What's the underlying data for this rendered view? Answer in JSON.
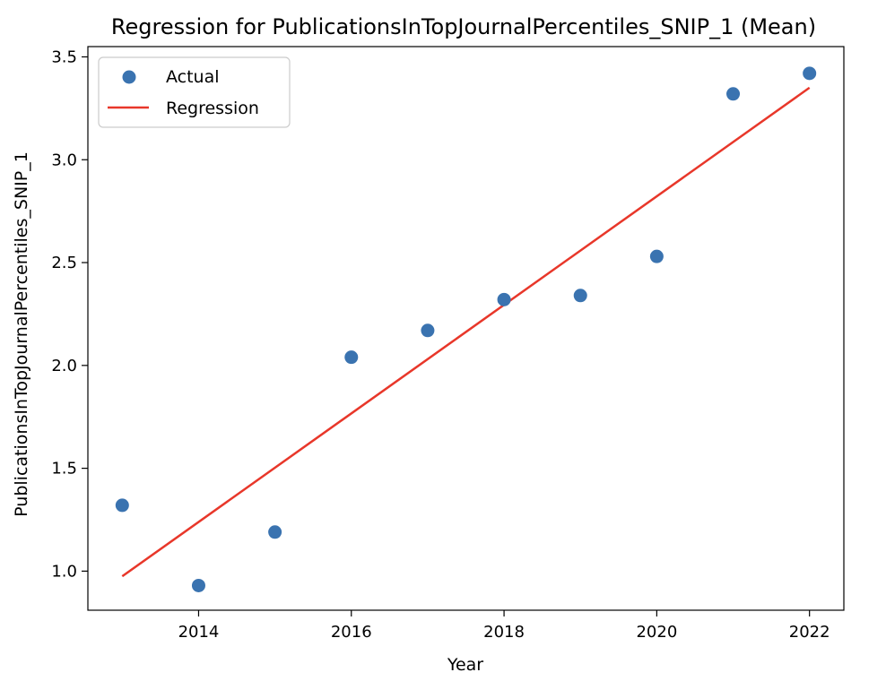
{
  "colors": {
    "actual": "#3a73b0",
    "regression": "#e8372a",
    "axis": "#000000",
    "legend_border": "#cccccc"
  },
  "chart_data": {
    "type": "scatter",
    "title": "Regression for PublicationsInTopJournalPercentiles_SNIP_1 (Mean)",
    "xlabel": "Year",
    "ylabel": "PublicationsInTopJournalPercentiles_SNIP_1",
    "xlim": [
      2012.55,
      2022.45
    ],
    "ylim": [
      0.81,
      3.55
    ],
    "x_ticks": [
      2014,
      2016,
      2018,
      2020,
      2022
    ],
    "x_tick_labels": [
      "2014",
      "2016",
      "2018",
      "2020",
      "2022"
    ],
    "y_ticks": [
      1.0,
      1.5,
      2.0,
      2.5,
      3.0,
      3.5
    ],
    "y_tick_labels": [
      "1.0",
      "1.5",
      "2.0",
      "2.5",
      "3.0",
      "3.5"
    ],
    "grid": false,
    "legend_position": "top-left",
    "series": [
      {
        "name": "Actual",
        "kind": "scatter",
        "x": [
          2013,
          2014,
          2015,
          2016,
          2017,
          2018,
          2019,
          2020,
          2021,
          2022
        ],
        "y": [
          1.32,
          0.93,
          1.19,
          2.04,
          2.17,
          2.32,
          2.34,
          2.53,
          3.32,
          3.42
        ]
      },
      {
        "name": "Regression",
        "kind": "line",
        "x": [
          2013,
          2022
        ],
        "y": [
          0.975,
          3.35
        ]
      }
    ]
  }
}
